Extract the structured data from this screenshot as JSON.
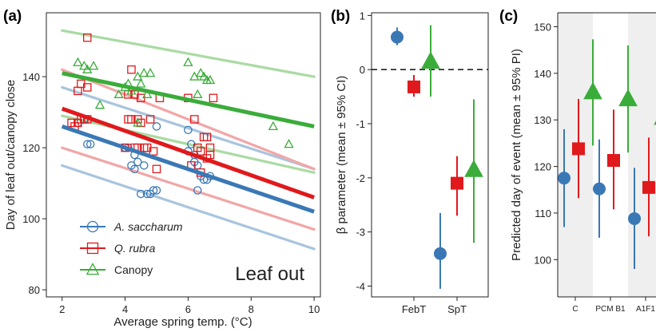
{
  "colors": {
    "saccharum": "#3a78b5",
    "rubra": "#e0191c",
    "canopy": "#3aac3a",
    "saccharum_light": "#a9c4de",
    "rubra_light": "#f2a6a7",
    "canopy_light": "#a9dba3",
    "shade": "#efefef"
  },
  "chart_data": [
    {
      "panel": "(a)",
      "type": "scatter",
      "annotation": "Leaf  out",
      "xlabel": "Average spring temp. (°C)",
      "ylabel": "Day of leaf out/canopy close",
      "xlim": [
        1.5,
        10.2
      ],
      "ylim": [
        78,
        158
      ],
      "xticks": [
        2,
        4,
        6,
        8,
        10
      ],
      "yticks": [
        80,
        100,
        120,
        140
      ],
      "grid": false,
      "legend_position": "bottom-left",
      "series": [
        {
          "name": "A. saccharum",
          "key": "saccharum",
          "marker": "circle",
          "points": [
            [
              2.5,
              127
            ],
            [
              2.7,
              128
            ],
            [
              2.8,
              121
            ],
            [
              2.9,
              121
            ],
            [
              4.0,
              120
            ],
            [
              4.1,
              120
            ],
            [
              4.2,
              115
            ],
            [
              4.3,
              114
            ],
            [
              4.3,
              118
            ],
            [
              4.4,
              116
            ],
            [
              4.5,
              107
            ],
            [
              4.6,
              115
            ],
            [
              4.7,
              107
            ],
            [
              4.8,
              107
            ],
            [
              4.9,
              108
            ],
            [
              5.0,
              108
            ],
            [
              5.0,
              126
            ],
            [
              6.0,
              119
            ],
            [
              6.0,
              125
            ],
            [
              6.1,
              121
            ],
            [
              6.2,
              118
            ],
            [
              6.2,
              116
            ],
            [
              6.3,
              108
            ],
            [
              6.3,
              115
            ],
            [
              6.4,
              112
            ],
            [
              6.5,
              111
            ],
            [
              6.6,
              111
            ],
            [
              6.7,
              112
            ]
          ],
          "fit": [
            [
              2.0,
              126
            ],
            [
              10.0,
              102
            ]
          ],
          "ci": [
            [
              [
                2.0,
                115
              ],
              [
                10.0,
                91.5
              ]
            ],
            [
              [
                2.0,
                137
              ],
              [
                10.0,
                114
              ]
            ]
          ]
        },
        {
          "name": "Q. rubra",
          "key": "rubra",
          "marker": "square",
          "points": [
            [
              2.3,
              127
            ],
            [
              2.4,
              126
            ],
            [
              2.5,
              127
            ],
            [
              2.5,
              136
            ],
            [
              2.6,
              128
            ],
            [
              2.6,
              138
            ],
            [
              2.7,
              128
            ],
            [
              2.8,
              128
            ],
            [
              2.8,
              137
            ],
            [
              2.8,
              151
            ],
            [
              4.0,
              120
            ],
            [
              4.1,
              128
            ],
            [
              4.1,
              135
            ],
            [
              4.2,
              142
            ],
            [
              4.2,
              128
            ],
            [
              4.3,
              120
            ],
            [
              4.3,
              135
            ],
            [
              4.4,
              128
            ],
            [
              4.4,
              120
            ],
            [
              4.5,
              134
            ],
            [
              4.5,
              127
            ],
            [
              4.6,
              120
            ],
            [
              4.7,
              120
            ],
            [
              4.8,
              128
            ],
            [
              4.9,
              119
            ],
            [
              5.0,
              114
            ],
            [
              5.1,
              134
            ],
            [
              6.0,
              134
            ],
            [
              6.1,
              115
            ],
            [
              6.2,
              128
            ],
            [
              6.3,
              120
            ],
            [
              6.4,
              113
            ],
            [
              6.4,
              119
            ],
            [
              6.5,
              123
            ],
            [
              6.6,
              117
            ],
            [
              6.6,
              123
            ],
            [
              6.7,
              120
            ],
            [
              6.7,
              118
            ],
            [
              6.8,
              134
            ]
          ],
          "fit": [
            [
              2.0,
              131
            ],
            [
              10.0,
              106
            ]
          ],
          "ci": [
            [
              [
                2.0,
                120
              ],
              [
                10.0,
                97
              ]
            ],
            [
              [
                2.0,
                142
              ],
              [
                10.0,
                114
              ]
            ]
          ]
        },
        {
          "name": "Canopy",
          "key": "canopy",
          "marker": "triangle",
          "points": [
            [
              2.5,
              144
            ],
            [
              2.7,
              143
            ],
            [
              2.8,
              142
            ],
            [
              3.0,
              143
            ],
            [
              3.2,
              132
            ],
            [
              3.8,
              135
            ],
            [
              4.0,
              137
            ],
            [
              4.1,
              138
            ],
            [
              4.2,
              136
            ],
            [
              4.4,
              140
            ],
            [
              4.4,
              127
            ],
            [
              4.5,
              138
            ],
            [
              4.6,
              141
            ],
            [
              4.7,
              135
            ],
            [
              4.8,
              141
            ],
            [
              6.0,
              144
            ],
            [
              6.2,
              140
            ],
            [
              6.3,
              135
            ],
            [
              6.4,
              141
            ],
            [
              6.5,
              140
            ],
            [
              6.6,
              139
            ],
            [
              6.7,
              139
            ],
            [
              8.7,
              126
            ],
            [
              9.2,
              121
            ]
          ],
          "fit": [
            [
              2.0,
              141
            ],
            [
              10.0,
              126
            ]
          ],
          "ci": [
            [
              [
                2.0,
                129
              ],
              [
                10.0,
                113
              ]
            ],
            [
              [
                2.0,
                153
              ],
              [
                10.0,
                140
              ]
            ]
          ]
        }
      ]
    },
    {
      "panel": "(b)",
      "type": "scatter",
      "ylabel": "β parameter (mean ± 95% CI)",
      "categories": [
        "FebT",
        "SpT"
      ],
      "ylim": [
        -4.2,
        1.05
      ],
      "yticks": [
        1,
        0,
        -1,
        -2,
        -3,
        -4
      ],
      "reference_line": 0,
      "grid": false,
      "series": [
        {
          "key": "saccharum",
          "marker": "circle",
          "values": [
            0.6,
            -3.4
          ],
          "lower": [
            0.45,
            -4.05
          ],
          "upper": [
            0.78,
            -2.65
          ]
        },
        {
          "key": "rubra",
          "marker": "square",
          "values": [
            -0.32,
            -2.1
          ],
          "lower": [
            -0.5,
            -2.7
          ],
          "upper": [
            -0.1,
            -1.6
          ]
        },
        {
          "key": "canopy",
          "marker": "triangle",
          "values": [
            0.15,
            -1.85
          ],
          "lower": [
            -0.5,
            -3.2
          ],
          "upper": [
            0.82,
            -0.55
          ]
        }
      ]
    },
    {
      "panel": "(c)",
      "type": "scatter",
      "ylabel": "Predicted day of event (mean ± 95% PI)",
      "categories": [
        "C",
        "PCM B1",
        "A1F1"
      ],
      "ylim": [
        92,
        153
      ],
      "yticks": [
        100,
        110,
        120,
        130,
        140,
        150
      ],
      "grid": false,
      "series": [
        {
          "key": "saccharum",
          "marker": "circle",
          "values": [
            117.5,
            115.2,
            108.8
          ],
          "lower": [
            107,
            104.7,
            98
          ],
          "upper": [
            128,
            125.8,
            119.7
          ]
        },
        {
          "key": "rubra",
          "marker": "square",
          "values": [
            123.8,
            121.3,
            115.5
          ],
          "lower": [
            113.2,
            110.8,
            105
          ],
          "upper": [
            134.5,
            132.2,
            126.2
          ]
        },
        {
          "key": "canopy",
          "marker": "triangle",
          "values": [
            136,
            134.5,
            130.5
          ],
          "lower": [
            124.5,
            123,
            118.5
          ],
          "upper": [
            147.3,
            146,
            142.8
          ]
        }
      ]
    }
  ]
}
